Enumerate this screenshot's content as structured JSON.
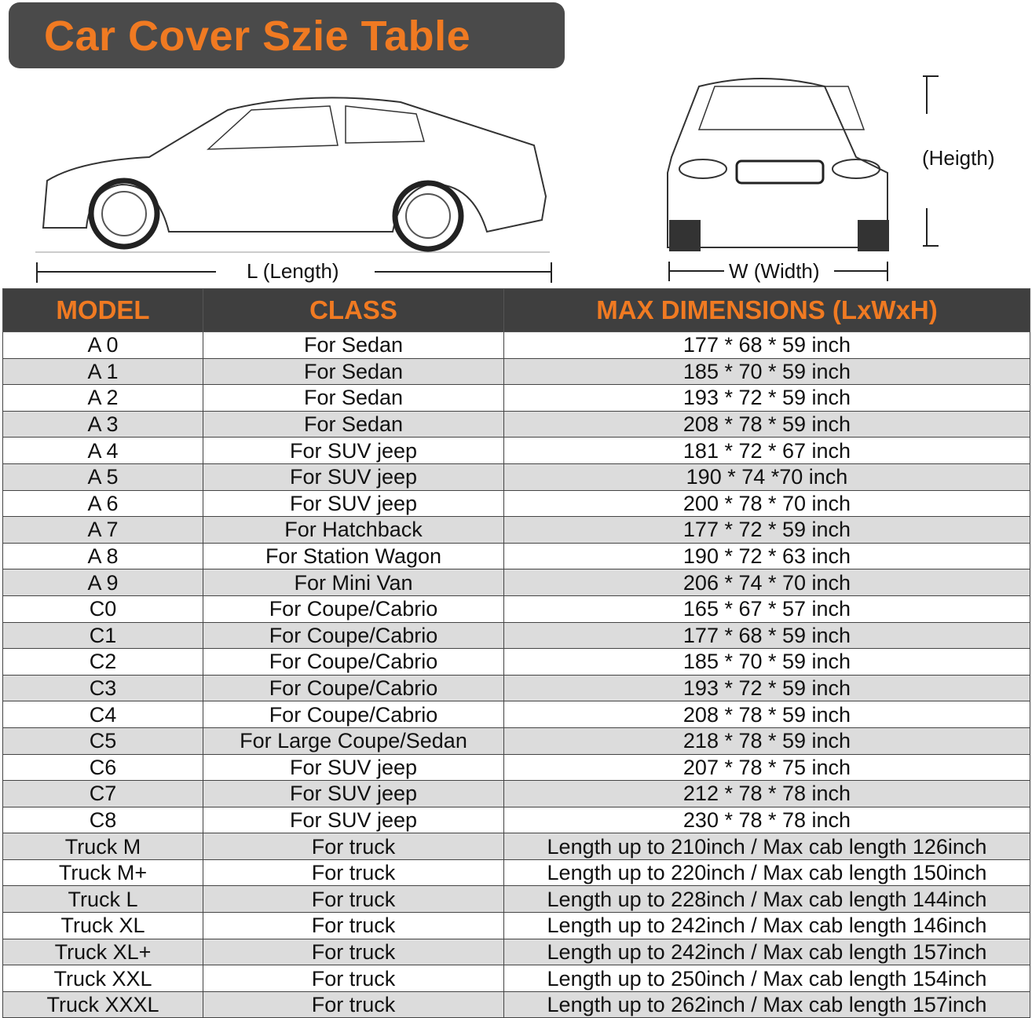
{
  "title": "Car Cover Szie Table",
  "labels": {
    "length": "L (Length)",
    "width": "W (Width)",
    "height": "(Heigth)"
  },
  "colors": {
    "accent": "#f07a22",
    "header_bg": "#3f3f3f",
    "alt_row": "#dcdcdc"
  },
  "table": {
    "headers": [
      "MODEL",
      "CLASS",
      "MAX DIMENSIONS (LxWxH)"
    ],
    "rows": [
      [
        "A 0",
        "For Sedan",
        "177 * 68 * 59 inch"
      ],
      [
        "A 1",
        "For Sedan",
        "185 * 70 * 59 inch"
      ],
      [
        "A 2",
        "For Sedan",
        "193 * 72 * 59 inch"
      ],
      [
        "A 3",
        "For Sedan",
        "208 * 78 * 59 inch"
      ],
      [
        "A 4",
        "For SUV jeep",
        "181 * 72 * 67 inch"
      ],
      [
        "A 5",
        "For SUV jeep",
        "190 * 74  *70 inch"
      ],
      [
        "A 6",
        "For SUV jeep",
        "200 * 78 * 70 inch"
      ],
      [
        "A 7",
        "For Hatchback",
        "177 * 72 * 59 inch"
      ],
      [
        "A 8",
        "For Station Wagon",
        "190 * 72 * 63 inch"
      ],
      [
        "A 9",
        "For Mini Van",
        "206 * 74 * 70 inch"
      ],
      [
        "C0",
        "For Coupe/Cabrio",
        "165 * 67 * 57 inch"
      ],
      [
        "C1",
        "For Coupe/Cabrio",
        "177 * 68 * 59 inch"
      ],
      [
        "C2",
        "For Coupe/Cabrio",
        "185 * 70 * 59 inch"
      ],
      [
        "C3",
        "For Coupe/Cabrio",
        "193 * 72 * 59 inch"
      ],
      [
        "C4",
        "For Coupe/Cabrio",
        "208 * 78 * 59 inch"
      ],
      [
        "C5",
        "For Large Coupe/Sedan",
        "218 * 78 * 59 inch"
      ],
      [
        "C6",
        "For SUV jeep",
        "207 * 78 * 75 inch"
      ],
      [
        "C7",
        "For SUV jeep",
        "212 * 78 * 78 inch"
      ],
      [
        "C8",
        "For SUV jeep",
        "230 * 78 * 78 inch"
      ],
      [
        "Truck M",
        "For truck",
        "Length up to 210inch / Max cab length 126inch"
      ],
      [
        "Truck M+",
        "For truck",
        "Length up to 220inch / Max cab length 150inch"
      ],
      [
        "Truck L",
        "For truck",
        "Length up to 228inch / Max cab length 144inch"
      ],
      [
        "Truck XL",
        "For truck",
        "Length up to 242inch / Max cab length 146inch"
      ],
      [
        "Truck XL+",
        "For truck",
        "Length up to 242inch / Max cab length 157inch"
      ],
      [
        "Truck XXL",
        "For truck",
        "Length up to 250inch / Max cab length 154inch"
      ],
      [
        "Truck XXXL",
        "For truck",
        "Length up to 262inch / Max cab length 157inch"
      ]
    ]
  }
}
